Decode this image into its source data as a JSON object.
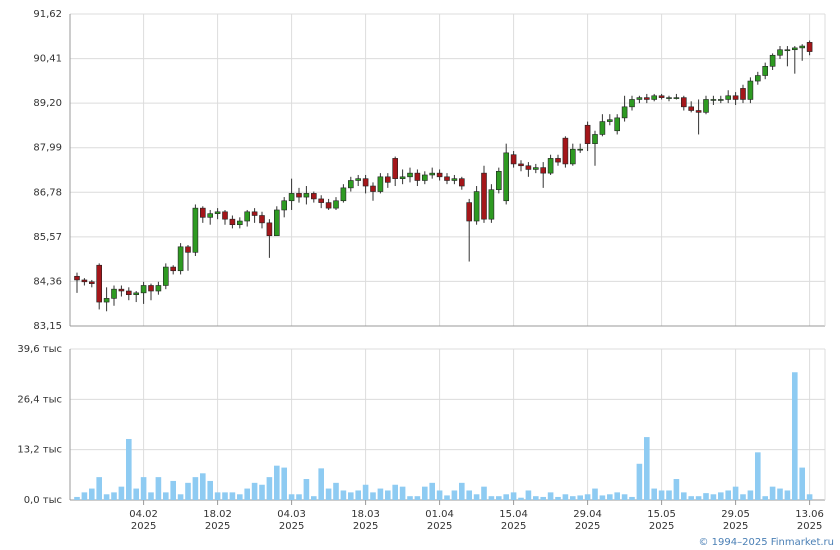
{
  "chart_data": {
    "type": "candlestick",
    "categories": [
      null,
      null,
      null,
      null,
      null,
      null,
      null,
      null,
      null,
      "04.02",
      null,
      null,
      null,
      null,
      null,
      null,
      null,
      null,
      null,
      "18.02",
      null,
      null,
      null,
      null,
      null,
      null,
      null,
      null,
      null,
      "04.03",
      null,
      null,
      null,
      null,
      null,
      null,
      null,
      null,
      null,
      "18.03",
      null,
      null,
      null,
      null,
      null,
      null,
      null,
      null,
      null,
      "01.04",
      null,
      null,
      null,
      null,
      null,
      null,
      null,
      null,
      null,
      "15.04",
      null,
      null,
      null,
      null,
      null,
      null,
      null,
      null,
      null,
      "29.04",
      null,
      null,
      null,
      null,
      null,
      null,
      null,
      null,
      null,
      "15.05",
      null,
      null,
      null,
      null,
      null,
      null,
      null,
      null,
      null,
      "29.05",
      null,
      null,
      null,
      null,
      null,
      null,
      null,
      null,
      null,
      "13.06"
    ],
    "year": "2025",
    "open": [
      84.5,
      84.4,
      84.35,
      84.8,
      83.8,
      83.9,
      84.15,
      84.1,
      84.0,
      84.05,
      84.25,
      84.1,
      84.25,
      84.75,
      84.65,
      85.3,
      85.15,
      86.35,
      86.1,
      86.2,
      86.25,
      86.05,
      85.9,
      86.0,
      86.25,
      86.15,
      85.95,
      85.6,
      86.3,
      86.55,
      86.75,
      86.65,
      86.75,
      86.6,
      86.5,
      86.35,
      86.55,
      86.9,
      87.1,
      87.15,
      86.95,
      86.8,
      87.2,
      87.7,
      87.15,
      87.2,
      87.3,
      87.1,
      87.25,
      87.3,
      87.2,
      87.1,
      87.15,
      86.5,
      86.0,
      87.3,
      86.05,
      86.85,
      86.55,
      87.8,
      87.55,
      87.5,
      87.4,
      87.45,
      87.3,
      87.7,
      88.25,
      87.55,
      87.95,
      88.6,
      88.1,
      88.35,
      88.7,
      88.45,
      88.8,
      89.1,
      89.3,
      89.35,
      89.3,
      89.4,
      89.35,
      89.35,
      89.35,
      89.1,
      89.0,
      88.95,
      89.3,
      89.3,
      89.3,
      89.4,
      89.6,
      89.3,
      89.8,
      89.95,
      90.2,
      90.5,
      90.65,
      90.65,
      90.7,
      90.85
    ],
    "high": [
      84.6,
      84.45,
      84.4,
      84.85,
      84.2,
      84.25,
      84.25,
      84.2,
      84.1,
      84.35,
      84.3,
      84.35,
      84.85,
      84.8,
      85.4,
      85.35,
      86.45,
      86.4,
      86.3,
      86.35,
      86.3,
      86.15,
      86.1,
      86.3,
      86.35,
      86.25,
      86.05,
      86.4,
      86.65,
      87.15,
      86.9,
      86.95,
      86.8,
      86.7,
      86.6,
      86.65,
      87.0,
      87.2,
      87.25,
      87.25,
      87.05,
      87.3,
      87.3,
      87.75,
      87.4,
      87.45,
      87.4,
      87.35,
      87.45,
      87.4,
      87.3,
      87.25,
      87.2,
      86.6,
      86.95,
      87.5,
      87.0,
      87.45,
      88.1,
      87.9,
      87.65,
      87.6,
      87.55,
      87.6,
      87.8,
      87.8,
      88.3,
      88.1,
      88.1,
      88.7,
      88.45,
      88.9,
      88.9,
      88.9,
      89.4,
      89.4,
      89.4,
      89.45,
      89.45,
      89.45,
      89.4,
      89.45,
      89.4,
      89.25,
      89.3,
      89.4,
      89.4,
      89.4,
      89.55,
      89.5,
      89.7,
      89.9,
      90.05,
      90.3,
      90.55,
      90.75,
      90.75,
      90.75,
      90.8,
      90.9
    ],
    "low": [
      84.05,
      84.25,
      84.2,
      83.6,
      83.55,
      83.7,
      83.95,
      83.85,
      83.8,
      83.75,
      83.85,
      84.0,
      84.15,
      84.55,
      84.55,
      84.65,
      85.05,
      85.95,
      85.9,
      86.05,
      85.9,
      85.8,
      85.8,
      85.85,
      85.95,
      85.8,
      85.0,
      85.6,
      86.1,
      86.3,
      86.5,
      86.45,
      86.5,
      86.35,
      86.3,
      86.3,
      86.5,
      86.8,
      86.95,
      86.75,
      86.55,
      86.75,
      86.9,
      86.95,
      87.0,
      87.05,
      86.95,
      87.0,
      87.15,
      87.1,
      87.0,
      87.0,
      86.85,
      84.9,
      85.9,
      85.95,
      85.95,
      86.75,
      86.45,
      87.45,
      87.35,
      87.2,
      87.3,
      86.9,
      87.25,
      87.5,
      87.45,
      87.5,
      87.85,
      87.9,
      87.5,
      88.3,
      88.6,
      88.35,
      88.7,
      89.0,
      89.2,
      89.2,
      89.25,
      89.3,
      89.25,
      89.3,
      89.0,
      88.95,
      88.35,
      88.9,
      89.15,
      89.2,
      89.2,
      89.15,
      89.2,
      89.2,
      89.7,
      89.85,
      90.1,
      90.4,
      90.2,
      90.0,
      90.35,
      90.5
    ],
    "close": [
      84.4,
      84.35,
      84.3,
      83.8,
      83.9,
      84.15,
      84.1,
      84.0,
      84.05,
      84.25,
      84.1,
      84.25,
      84.75,
      84.65,
      85.3,
      85.15,
      86.35,
      86.1,
      86.2,
      86.25,
      86.05,
      85.9,
      86.0,
      86.25,
      86.15,
      85.95,
      85.6,
      86.3,
      86.55,
      86.75,
      86.65,
      86.75,
      86.6,
      86.5,
      86.35,
      86.55,
      86.9,
      87.1,
      87.15,
      86.95,
      86.8,
      87.2,
      87.05,
      87.15,
      87.2,
      87.3,
      87.1,
      87.25,
      87.3,
      87.2,
      87.1,
      87.15,
      86.95,
      86.0,
      86.8,
      86.05,
      86.85,
      87.35,
      87.85,
      87.55,
      87.5,
      87.4,
      87.45,
      87.3,
      87.7,
      87.6,
      87.55,
      87.95,
      87.95,
      88.1,
      88.35,
      88.7,
      88.75,
      88.8,
      89.1,
      89.3,
      89.35,
      89.3,
      89.4,
      89.35,
      89.35,
      89.35,
      89.1,
      89.0,
      88.95,
      89.3,
      89.3,
      89.3,
      89.4,
      89.3,
      89.3,
      89.8,
      89.95,
      90.2,
      90.5,
      90.65,
      90.65,
      90.7,
      90.75,
      90.6
    ],
    "up_color": "#2e9a22",
    "down_color": "#a4161a",
    "ylim": [
      83.15,
      91.62
    ],
    "yticks": [
      {
        "value": 83.15,
        "label": "83,15"
      },
      {
        "value": 84.36,
        "label": "84,36"
      },
      {
        "value": 85.57,
        "label": "85,57"
      },
      {
        "value": 86.78,
        "label": "86,78"
      },
      {
        "value": 87.99,
        "label": "87,99"
      },
      {
        "value": 89.2,
        "label": "89,20"
      },
      {
        "value": 90.41,
        "label": "90,41"
      },
      {
        "value": 91.62,
        "label": "91,62"
      }
    ],
    "grid": true,
    "volume": {
      "type": "bar",
      "color": "#8ecbf2",
      "values": [
        0.8,
        2,
        3,
        6,
        1.5,
        2,
        3.5,
        16,
        3,
        6,
        2,
        6,
        2,
        5,
        1.5,
        4.5,
        6,
        7,
        5,
        2,
        2,
        2,
        1.5,
        3,
        4.5,
        4,
        6,
        9,
        8.5,
        1.5,
        1.5,
        5.5,
        1,
        8.3,
        3,
        4.5,
        2.5,
        2,
        2.5,
        4,
        2,
        3,
        2.5,
        4,
        3.5,
        1,
        1,
        3.5,
        4.5,
        2.5,
        1.2,
        2.5,
        4.5,
        2.5,
        1.5,
        3.5,
        1,
        1,
        1.5,
        2,
        0.6,
        2.5,
        1,
        0.8,
        2,
        0.8,
        1.5,
        1,
        1.2,
        1.5,
        3,
        1.2,
        1.5,
        2,
        1.5,
        0.8,
        9.5,
        16.5,
        3,
        2.5,
        2.5,
        5.5,
        2,
        1,
        1,
        1.8,
        1.5,
        2,
        2.5,
        3.5,
        1.5,
        2.5,
        12.5,
        1,
        3.5,
        3,
        2.5,
        33.5,
        8.5,
        1.5
      ],
      "ylim": [
        0,
        39.6
      ],
      "yticks": [
        {
          "value": 0,
          "label": "0,0 тыс"
        },
        {
          "value": 13.2,
          "label": "13,2 тыс"
        },
        {
          "value": 26.4,
          "label": "26,4 тыс"
        },
        {
          "value": 39.6,
          "label": "39,6 тыс"
        }
      ]
    }
  },
  "footer": "© 1994–2025 Finmarket.ru"
}
